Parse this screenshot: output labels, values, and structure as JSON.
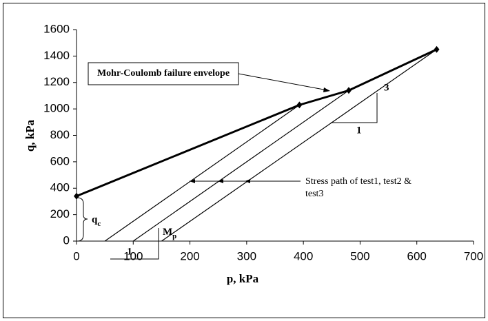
{
  "chart_data": {
    "type": "line",
    "xlabel": "p, kPa",
    "ylabel": "q,  kPa",
    "xlim": [
      0,
      700
    ],
    "xticks": [
      0,
      100,
      200,
      300,
      400,
      500,
      600,
      700
    ],
    "ylim": [
      0,
      1600
    ],
    "yticks": [
      0,
      200,
      400,
      600,
      800,
      1000,
      1200,
      1400,
      1600
    ],
    "series": [
      {
        "color": "#000000",
        "x": [
          0,
          393,
          480,
          635
        ],
        "values": [
          340,
          1030,
          1140,
          1450
        ]
      },
      {
        "color": "#000000",
        "x": [
          50,
          393
        ],
        "values": [
          0,
          1030
        ]
      },
      {
        "color": "#000000",
        "x": [
          100,
          480
        ],
        "values": [
          0,
          1140
        ]
      },
      {
        "color": "#000000",
        "x": [
          150,
          635
        ],
        "values": [
          0,
          1450
        ]
      }
    ],
    "annotations": {
      "envelope": "Mohr-Coulomb failure envelope",
      "stress_path": [
        "Stress path of test1, test2 &",
        "test3"
      ],
      "slope1_run": "1",
      "slope1_rise": {
        "text": "M",
        "sub": "p"
      },
      "slope2_rise": "3",
      "slope2_run": "1",
      "intercept": {
        "text": "q",
        "sub": "c"
      }
    }
  }
}
